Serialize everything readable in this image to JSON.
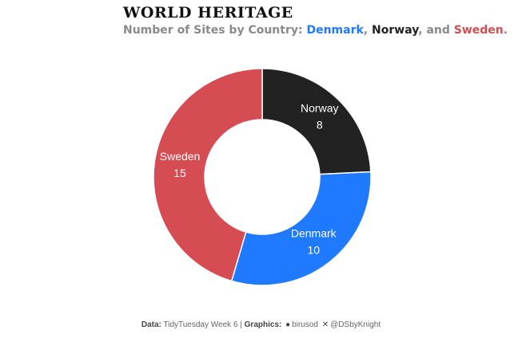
{
  "header": {
    "title": "WORLD HERITAGE",
    "subtitle_prefix": "Number of Sites by Country: ",
    "subtitle_sep1": ", ",
    "subtitle_sep2": ", and ",
    "subtitle_end": "."
  },
  "chart_data": {
    "type": "pie",
    "donut": true,
    "categories": [
      "Norway",
      "Denmark",
      "Sweden"
    ],
    "values": [
      8,
      10,
      15
    ],
    "colors": [
      "#222222",
      "#1f7aff",
      "#d54c53"
    ],
    "legend": "none",
    "title": "WORLD HERITAGE",
    "subtitle": "Number of Sites by Country: Denmark, Norway, and Sweden."
  },
  "caption": {
    "data_label": "Data:",
    "data_value": " TidyTuesday Week 6 | ",
    "graphics_label": "Graphics:",
    "github_icon": "github-icon",
    "github_handle": "birusod",
    "x_icon": "x-twitter-icon",
    "x_handle": "@DSbyKnight"
  }
}
